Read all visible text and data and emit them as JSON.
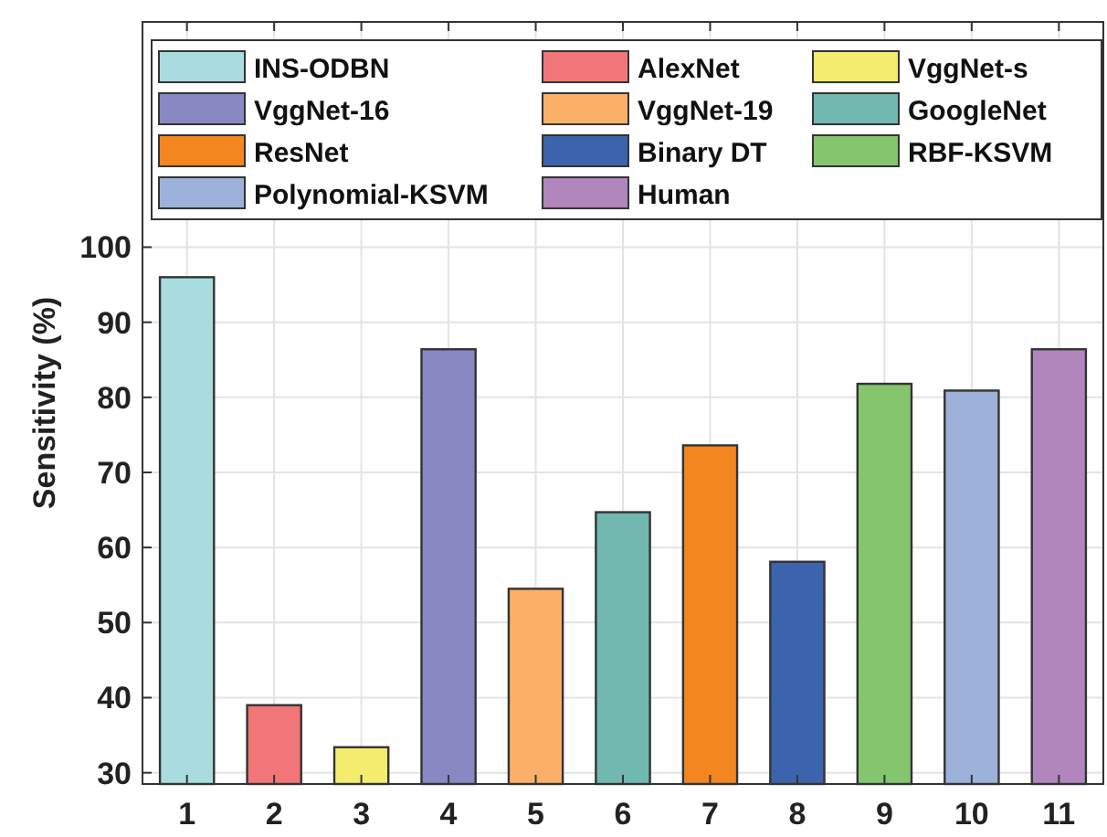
{
  "chart_data": {
    "type": "bar",
    "ylabel": "Sensitivity (%)",
    "categories": [
      "1",
      "2",
      "3",
      "4",
      "5",
      "6",
      "7",
      "8",
      "9",
      "10",
      "11"
    ],
    "ylim": [
      28.5,
      130
    ],
    "yticks": [
      30,
      40,
      50,
      60,
      70,
      80,
      90,
      100
    ],
    "grid": true,
    "legend": "top",
    "series": [
      {
        "name": "INS-ODBN",
        "color": "#a8dcdf",
        "values": [
          96.0,
          null,
          null,
          null,
          null,
          null,
          null,
          null,
          null,
          null,
          null
        ]
      },
      {
        "name": "AlexNet",
        "color": "#f27677",
        "values": [
          null,
          39.0,
          null,
          null,
          null,
          null,
          null,
          null,
          null,
          null,
          null
        ]
      },
      {
        "name": "VggNet-s",
        "color": "#f4ec6c",
        "values": [
          null,
          null,
          33.4,
          null,
          null,
          null,
          null,
          null,
          null,
          null,
          null
        ]
      },
      {
        "name": "VggNet-16",
        "color": "#8889c2",
        "values": [
          null,
          null,
          null,
          86.4,
          null,
          null,
          null,
          null,
          null,
          null,
          null
        ]
      },
      {
        "name": "VggNet-19",
        "color": "#fbb068",
        "values": [
          null,
          null,
          null,
          null,
          54.5,
          null,
          null,
          null,
          null,
          null,
          null
        ]
      },
      {
        "name": "GoogleNet",
        "color": "#71b8b0",
        "values": [
          null,
          null,
          null,
          null,
          null,
          64.7,
          null,
          null,
          null,
          null,
          null
        ]
      },
      {
        "name": "ResNet",
        "color": "#f48620",
        "values": [
          null,
          null,
          null,
          null,
          null,
          null,
          73.6,
          null,
          null,
          null,
          null
        ]
      },
      {
        "name": "Binary DT",
        "color": "#3c64ad",
        "values": [
          null,
          null,
          null,
          null,
          null,
          null,
          null,
          58.1,
          null,
          null,
          null
        ]
      },
      {
        "name": "RBF-KSVM",
        "color": "#84c56d",
        "values": [
          null,
          null,
          null,
          null,
          null,
          null,
          null,
          null,
          81.8,
          null,
          null
        ]
      },
      {
        "name": "Polynomial-KSVM",
        "color": "#9db2da",
        "values": [
          null,
          null,
          null,
          null,
          null,
          null,
          null,
          null,
          null,
          80.9,
          null
        ]
      },
      {
        "name": "Human",
        "color": "#b186bd",
        "values": [
          null,
          null,
          null,
          null,
          null,
          null,
          null,
          null,
          null,
          null,
          86.4
        ]
      }
    ]
  }
}
